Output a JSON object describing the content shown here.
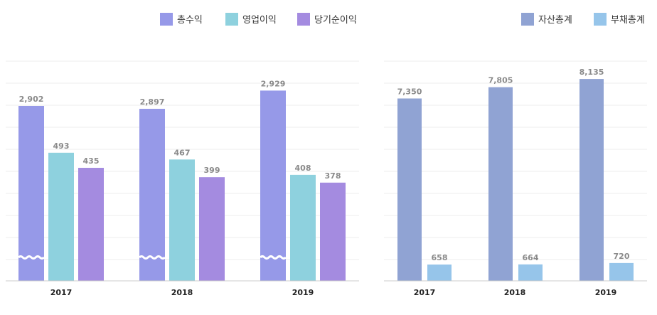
{
  "chart_data": [
    {
      "type": "bar",
      "title": "",
      "xlabel": "",
      "ylabel": "",
      "categories": [
        "2017",
        "2018",
        "2019"
      ],
      "series": [
        {
          "name": "총수익",
          "color": "#9699E8",
          "values": [
            2902,
            2897,
            2929
          ],
          "axis_break": true
        },
        {
          "name": "영업이익",
          "color": "#8ED1DE",
          "values": [
            493,
            467,
            408
          ]
        },
        {
          "name": "당기순이익",
          "color": "#A48BE0",
          "values": [
            435,
            399,
            378
          ]
        }
      ],
      "value_labels": {
        "총수익": [
          "2,902",
          "2,897",
          "2,929"
        ],
        "영업이익": [
          "493",
          "467",
          "408"
        ],
        "당기순이익": [
          "435",
          "399",
          "378"
        ]
      },
      "legend_position": "top-right",
      "grid": true
    },
    {
      "type": "bar",
      "title": "",
      "xlabel": "",
      "ylabel": "",
      "categories": [
        "2017",
        "2018",
        "2019"
      ],
      "series": [
        {
          "name": "자산총계",
          "color": "#90A3D3",
          "values": [
            7350,
            7805,
            8135
          ]
        },
        {
          "name": "부채총계",
          "color": "#96C5EA",
          "values": [
            658,
            664,
            720
          ]
        }
      ],
      "value_labels": {
        "자산총계": [
          "7,350",
          "7,805",
          "8,135"
        ],
        "부채총계": [
          "658",
          "664",
          "720"
        ]
      },
      "legend_position": "top-right",
      "grid": true
    }
  ]
}
